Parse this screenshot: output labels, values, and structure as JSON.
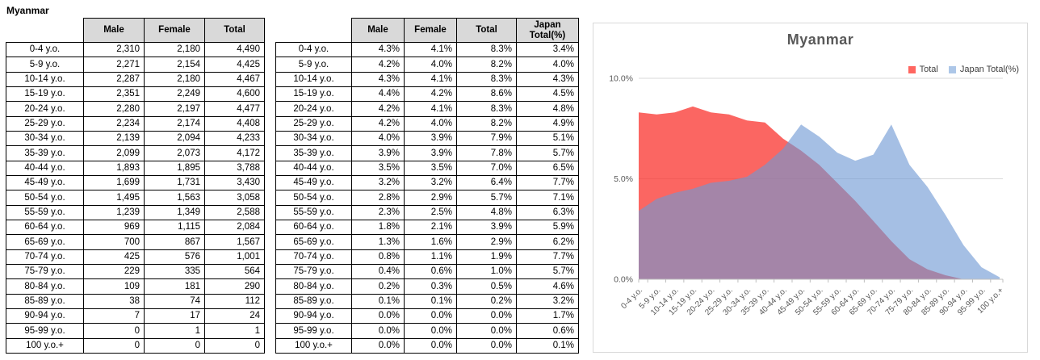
{
  "title": "Myanmar",
  "tables": {
    "counts": {
      "columns": [
        "Male",
        "Female",
        "Total"
      ],
      "rows": [
        [
          "0-4 y.o.",
          "2,310",
          "2,180",
          "4,490"
        ],
        [
          "5-9 y.o.",
          "2,271",
          "2,154",
          "4,425"
        ],
        [
          "10-14 y.o.",
          "2,287",
          "2,180",
          "4,467"
        ],
        [
          "15-19 y.o.",
          "2,351",
          "2,249",
          "4,600"
        ],
        [
          "20-24 y.o.",
          "2,280",
          "2,197",
          "4,477"
        ],
        [
          "25-29 y.o.",
          "2,234",
          "2,174",
          "4,408"
        ],
        [
          "30-34 y.o.",
          "2,139",
          "2,094",
          "4,233"
        ],
        [
          "35-39 y.o.",
          "2,099",
          "2,073",
          "4,172"
        ],
        [
          "40-44 y.o.",
          "1,893",
          "1,895",
          "3,788"
        ],
        [
          "45-49 y.o.",
          "1,699",
          "1,731",
          "3,430"
        ],
        [
          "50-54 y.o.",
          "1,495",
          "1,563",
          "3,058"
        ],
        [
          "55-59 y.o.",
          "1,239",
          "1,349",
          "2,588"
        ],
        [
          "60-64 y.o.",
          "969",
          "1,115",
          "2,084"
        ],
        [
          "65-69 y.o.",
          "700",
          "867",
          "1,567"
        ],
        [
          "70-74 y.o.",
          "425",
          "576",
          "1,001"
        ],
        [
          "75-79 y.o.",
          "229",
          "335",
          "564"
        ],
        [
          "80-84 y.o.",
          "109",
          "181",
          "290"
        ],
        [
          "85-89 y.o.",
          "38",
          "74",
          "112"
        ],
        [
          "90-94 y.o.",
          "7",
          "17",
          "24"
        ],
        [
          "95-99 y.o.",
          "0",
          "1",
          "1"
        ],
        [
          "100 y.o.+",
          "0",
          "0",
          "0"
        ]
      ]
    },
    "percent": {
      "columns": [
        "Male",
        "Female",
        "Total",
        "Japan Total(%)"
      ],
      "rows": [
        [
          "0-4 y.o.",
          "4.3%",
          "4.1%",
          "8.3%",
          "3.4%"
        ],
        [
          "5-9 y.o.",
          "4.2%",
          "4.0%",
          "8.2%",
          "4.0%"
        ],
        [
          "10-14 y.o.",
          "4.3%",
          "4.1%",
          "8.3%",
          "4.3%"
        ],
        [
          "15-19 y.o.",
          "4.4%",
          "4.2%",
          "8.6%",
          "4.5%"
        ],
        [
          "20-24 y.o.",
          "4.2%",
          "4.1%",
          "8.3%",
          "4.8%"
        ],
        [
          "25-29 y.o.",
          "4.2%",
          "4.0%",
          "8.2%",
          "4.9%"
        ],
        [
          "30-34 y.o.",
          "4.0%",
          "3.9%",
          "7.9%",
          "5.1%"
        ],
        [
          "35-39 y.o.",
          "3.9%",
          "3.9%",
          "7.8%",
          "5.7%"
        ],
        [
          "40-44 y.o.",
          "3.5%",
          "3.5%",
          "7.0%",
          "6.5%"
        ],
        [
          "45-49 y.o.",
          "3.2%",
          "3.2%",
          "6.4%",
          "7.7%"
        ],
        [
          "50-54 y.o.",
          "2.8%",
          "2.9%",
          "5.7%",
          "7.1%"
        ],
        [
          "55-59 y.o.",
          "2.3%",
          "2.5%",
          "4.8%",
          "6.3%"
        ],
        [
          "60-64 y.o.",
          "1.8%",
          "2.1%",
          "3.9%",
          "5.9%"
        ],
        [
          "65-69 y.o.",
          "1.3%",
          "1.6%",
          "2.9%",
          "6.2%"
        ],
        [
          "70-74 y.o.",
          "0.8%",
          "1.1%",
          "1.9%",
          "7.7%"
        ],
        [
          "75-79 y.o.",
          "0.4%",
          "0.6%",
          "1.0%",
          "5.7%"
        ],
        [
          "80-84 y.o.",
          "0.2%",
          "0.3%",
          "0.5%",
          "4.6%"
        ],
        [
          "85-89 y.o.",
          "0.1%",
          "0.1%",
          "0.2%",
          "3.2%"
        ],
        [
          "90-94 y.o.",
          "0.0%",
          "0.0%",
          "0.0%",
          "1.7%"
        ],
        [
          "95-99 y.o.",
          "0.0%",
          "0.0%",
          "0.0%",
          "0.6%"
        ],
        [
          "100 y.o.+",
          "0.0%",
          "0.0%",
          "0.0%",
          "0.1%"
        ]
      ]
    }
  },
  "chart_data": {
    "type": "area",
    "title": "Myanmar",
    "categories": [
      "0-4 y.o.",
      "5-9 y.o.",
      "10-14 y.o.",
      "15-19 y.o.",
      "20-24 y.o.",
      "25-29 y.o.",
      "30-34 y.o.",
      "35-39 y.o.",
      "40-44 y.o.",
      "45-49 y.o.",
      "50-54 y.o.",
      "55-59 y.o.",
      "60-64 y.o.",
      "65-69 y.o.",
      "70-74 y.o.",
      "75-79 y.o.",
      "80-84 y.o.",
      "85-89 y.o.",
      "90-94 y.o.",
      "95-99 y.o.",
      "100 y.o.+"
    ],
    "series": [
      {
        "name": "Total",
        "values": [
          8.3,
          8.2,
          8.3,
          8.6,
          8.3,
          8.2,
          7.9,
          7.8,
          7.0,
          6.4,
          5.7,
          4.8,
          3.9,
          2.9,
          1.9,
          1.0,
          0.5,
          0.2,
          0.0,
          0.0,
          0.0
        ],
        "fill": "rgba(250,45,40,0.73)",
        "legend_color": "#ff6660"
      },
      {
        "name": "Japan Total(%)",
        "values": [
          3.4,
          4.0,
          4.3,
          4.5,
          4.8,
          4.9,
          5.1,
          5.7,
          6.5,
          7.7,
          7.1,
          6.3,
          5.9,
          6.2,
          7.7,
          5.7,
          4.6,
          3.2,
          1.7,
          0.6,
          0.1
        ],
        "fill": "rgba(110,152,212,0.62)",
        "legend_color": "#adc7e8"
      }
    ],
    "ylim": [
      0,
      10
    ],
    "yticks": [
      {
        "value": 0,
        "label": "0.0%"
      },
      {
        "value": 5,
        "label": "5.0%"
      },
      {
        "value": 10,
        "label": "10.0%"
      }
    ],
    "grid": true,
    "legend_position": "top-right"
  },
  "colors": {
    "header_bg": "#d9d9d9",
    "chart_border": "#d9d9d9",
    "grid_line": "#d9d9d9",
    "axis_line": "#bfbfbf",
    "label_text": "#595959"
  }
}
